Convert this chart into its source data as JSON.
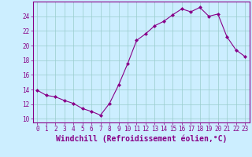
{
  "x": [
    0,
    1,
    2,
    3,
    4,
    5,
    6,
    7,
    8,
    9,
    10,
    11,
    12,
    13,
    14,
    15,
    16,
    17,
    18,
    19,
    20,
    21,
    22,
    23
  ],
  "y": [
    13.9,
    13.2,
    13.0,
    12.5,
    12.1,
    11.4,
    11.0,
    10.5,
    12.1,
    14.6,
    17.5,
    20.7,
    21.6,
    22.7,
    23.3,
    24.2,
    25.0,
    24.6,
    25.2,
    24.0,
    24.3,
    21.2,
    19.4,
    18.5
  ],
  "line_color": "#880088",
  "marker": "D",
  "marker_size": 2.0,
  "bg_color": "#cceeff",
  "grid_color": "#99cccc",
  "xlabel": "Windchill (Refroidissement éolien,°C)",
  "xlim": [
    -0.5,
    23.5
  ],
  "ylim": [
    9.5,
    26.0
  ],
  "yticks": [
    10,
    12,
    14,
    16,
    18,
    20,
    22,
    24
  ],
  "xticks": [
    0,
    1,
    2,
    3,
    4,
    5,
    6,
    7,
    8,
    9,
    10,
    11,
    12,
    13,
    14,
    15,
    16,
    17,
    18,
    19,
    20,
    21,
    22,
    23
  ],
  "tick_label_fontsize": 5.5,
  "xlabel_fontsize": 7.0
}
